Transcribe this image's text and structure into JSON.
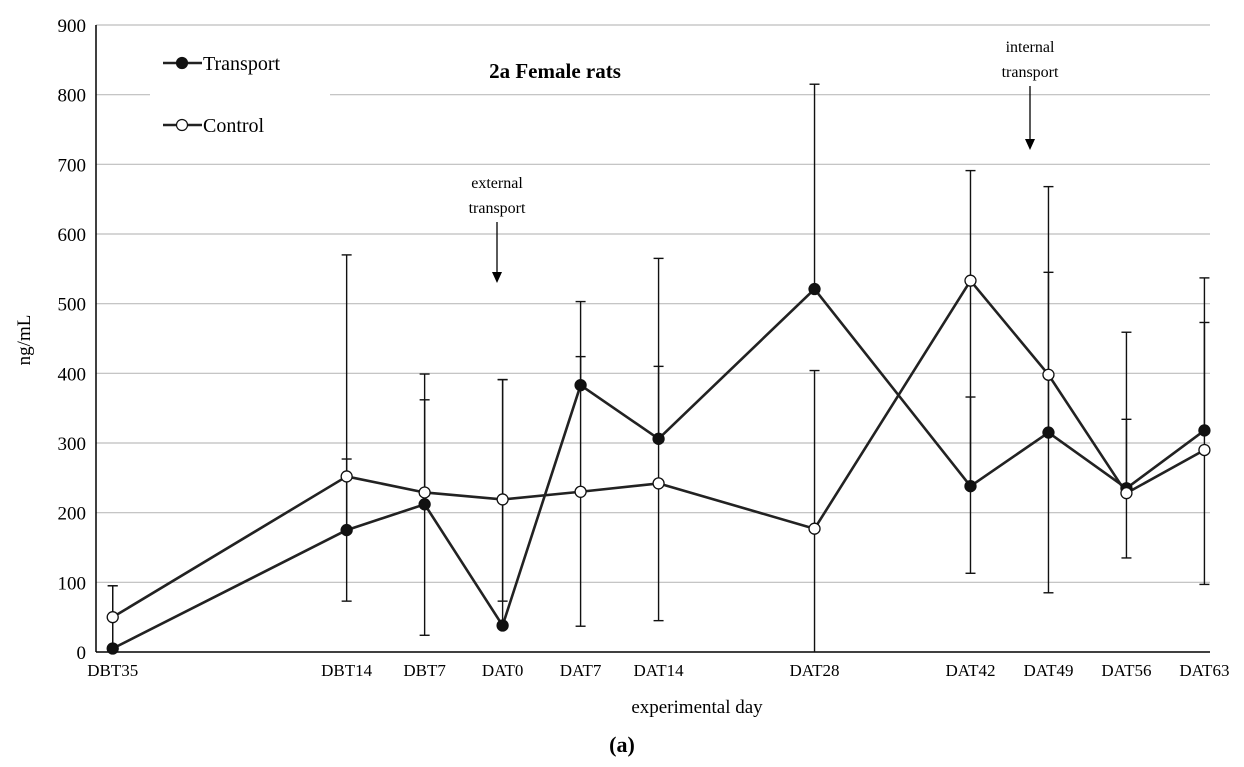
{
  "chart_data": {
    "type": "line",
    "title": "2a Female rats",
    "xlabel": "experimental day",
    "ylabel": "ng/mL",
    "caption": "(a)",
    "ylim": [
      0,
      900
    ],
    "yticks": [
      0,
      100,
      200,
      300,
      400,
      500,
      600,
      700,
      800,
      900
    ],
    "grid": true,
    "legend_position": "top-left",
    "categories": [
      "DBT35",
      "DBT14",
      "DBT7",
      "DAT0",
      "DAT7",
      "DAT14",
      "DAT28",
      "DAT42",
      "DAT49",
      "DAT56",
      "DAT63"
    ],
    "x_days": [
      -35,
      -14,
      -7,
      0,
      7,
      14,
      28,
      42,
      49,
      56,
      63
    ],
    "series": [
      {
        "name": "Transport",
        "marker": "filled-circle",
        "values": [
          5,
          175,
          212,
          38,
          383,
          306,
          521,
          238,
          315,
          235,
          318
        ],
        "err_low": [
          5,
          175,
          212,
          38,
          383,
          306,
          521,
          238,
          315,
          235,
          318
        ],
        "err_high": [
          95,
          570,
          399,
          391,
          503,
          565,
          815,
          366,
          545,
          459,
          537
        ]
      },
      {
        "name": "Control",
        "marker": "open-circle",
        "values": [
          50,
          252,
          229,
          219,
          230,
          242,
          177,
          533,
          398,
          228,
          290
        ],
        "err_low": [
          5,
          73,
          24,
          73,
          37,
          45,
          0,
          113,
          85,
          135,
          97
        ],
        "err_high": [
          95,
          277,
          362,
          391,
          424,
          410,
          404,
          691,
          668,
          334,
          473
        ]
      }
    ],
    "annotations": [
      {
        "lines": [
          "external",
          "transport"
        ],
        "at": "DAT0"
      },
      {
        "lines": [
          "internal",
          "transport"
        ],
        "at": "DAT49"
      }
    ],
    "colors": {
      "line": "#222222",
      "grid": "#bdbdbd",
      "axis": "#000000"
    }
  }
}
